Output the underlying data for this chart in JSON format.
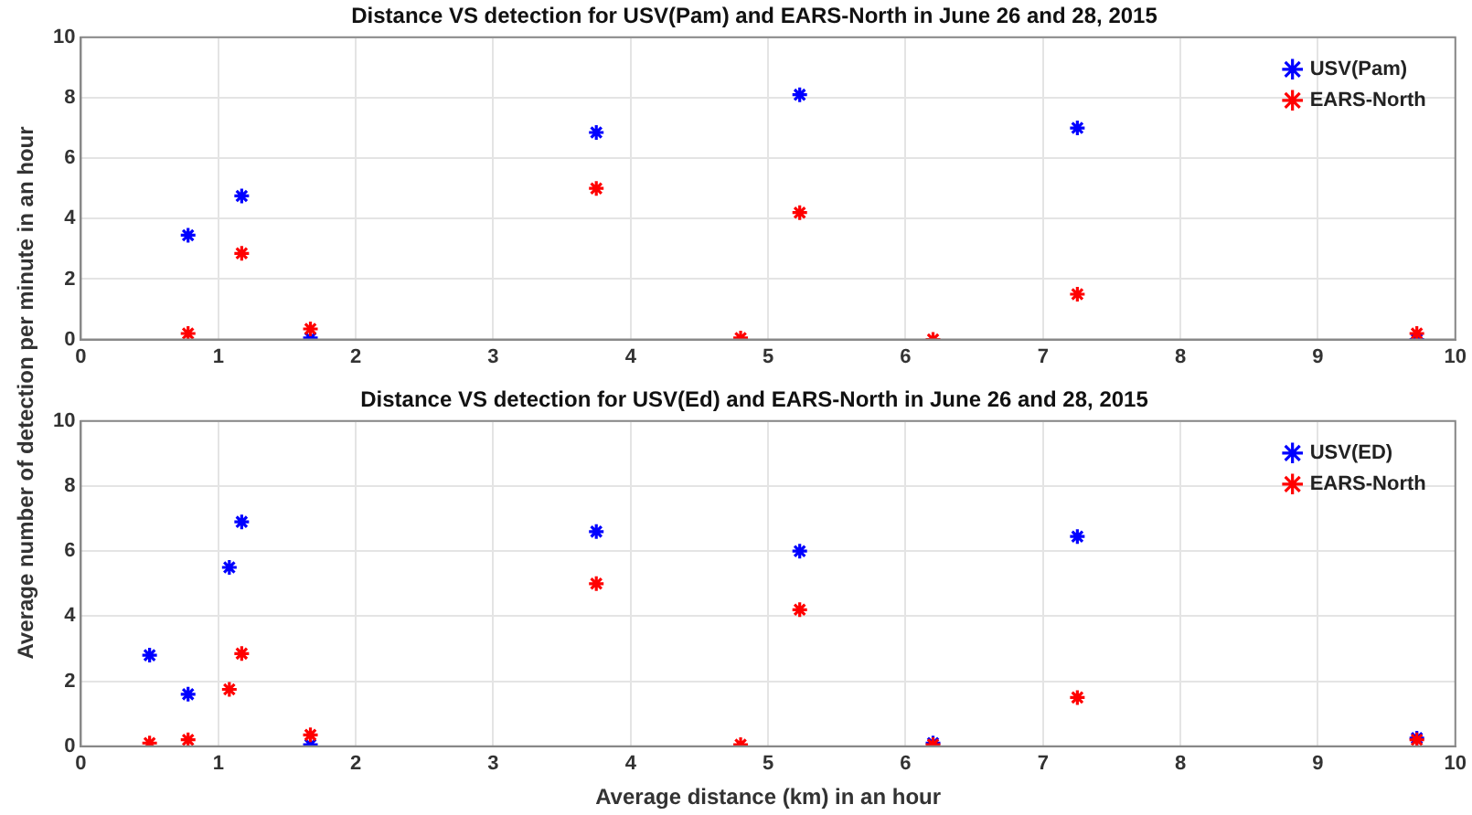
{
  "chart_data": [
    {
      "type": "scatter",
      "title": "Distance VS detection for USV(Pam) and EARS-North in June 26 and 28, 2015",
      "ylabel": "Average number of detection per minute in an hour",
      "xlim": [
        0,
        10
      ],
      "xticks": [
        0,
        1,
        2,
        3,
        4,
        5,
        6,
        7,
        8,
        9,
        10
      ],
      "ylim": [
        0,
        10
      ],
      "yticks": [
        0,
        2,
        4,
        6,
        8,
        10
      ],
      "grid": true,
      "legend": "top right",
      "marker": "cross",
      "series": [
        {
          "name": "USV(Pam)",
          "color": "#0000ff",
          "x": [
            0.78,
            1.17,
            1.67,
            3.75,
            5.23,
            7.25,
            9.72
          ],
          "values": [
            3.45,
            4.75,
            0.05,
            6.85,
            8.1,
            7.0,
            0.0
          ]
        },
        {
          "name": "EARS-North",
          "color": "#ff0000",
          "x": [
            0.78,
            1.17,
            1.67,
            3.75,
            4.8,
            5.23,
            6.2,
            7.25,
            9.72
          ],
          "values": [
            0.2,
            2.85,
            0.35,
            5.0,
            0.05,
            4.2,
            0.0,
            1.5,
            0.2
          ]
        }
      ]
    },
    {
      "type": "scatter",
      "title": "Distance VS detection for USV(Ed) and EARS-North in June 26 and 28, 2015",
      "xlabel": "Average distance (km) in an hour",
      "xlim": [
        0,
        10
      ],
      "xticks": [
        0,
        1,
        2,
        3,
        4,
        5,
        6,
        7,
        8,
        9,
        10
      ],
      "ylim": [
        0,
        10
      ],
      "yticks": [
        0,
        2,
        4,
        6,
        8,
        10
      ],
      "grid": true,
      "legend": "top right",
      "marker": "cross",
      "series": [
        {
          "name": "USV(ED)",
          "color": "#0000ff",
          "x": [
            0.5,
            0.78,
            1.08,
            1.17,
            1.67,
            3.75,
            5.23,
            6.2,
            7.25,
            9.72
          ],
          "values": [
            2.8,
            1.6,
            5.5,
            6.9,
            0.05,
            6.6,
            6.0,
            0.1,
            6.45,
            0.25
          ]
        },
        {
          "name": "EARS-North",
          "color": "#ff0000",
          "x": [
            0.5,
            0.78,
            1.08,
            1.17,
            1.67,
            3.75,
            4.8,
            5.23,
            6.2,
            7.25,
            9.72
          ],
          "values": [
            0.1,
            0.2,
            1.75,
            2.85,
            0.35,
            5.0,
            0.05,
            4.2,
            0.05,
            1.5,
            0.2
          ]
        }
      ]
    }
  ]
}
